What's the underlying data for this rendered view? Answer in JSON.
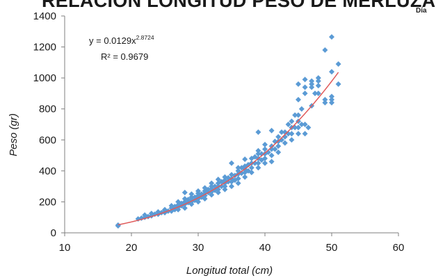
{
  "header": {
    "title": "RELACIÓN LONGITUD PESO DE MERLUZA",
    "side_fragment": "Día"
  },
  "colors": {
    "points": "#5b9bd5",
    "trendline": "#e05a5a",
    "axis": "#7f7f7f",
    "text": "#1a1a1a"
  },
  "chart_data": {
    "type": "scatter",
    "title": "RELACIÓN LONGITUD PESO DE MERLUZA",
    "xlabel": "Longitud total (cm)",
    "ylabel": "Peso (gr)",
    "xlim": [
      10,
      60
    ],
    "ylim": [
      0,
      1400
    ],
    "xticks": [
      10,
      20,
      30,
      40,
      50,
      60
    ],
    "yticks": [
      0,
      200,
      400,
      600,
      800,
      1000,
      1200,
      1400
    ],
    "grid": false,
    "legend": "none",
    "equation": "y = 0.0129x",
    "equation_exponent": "2.8724",
    "r_squared": "R² = 0.9679",
    "trendline": {
      "type": "power",
      "a": 0.0129,
      "b": 2.8724,
      "x_range": [
        18,
        51
      ]
    },
    "points": [
      [
        18,
        45
      ],
      [
        18,
        50
      ],
      [
        21,
        90
      ],
      [
        21.5,
        95
      ],
      [
        22,
        100
      ],
      [
        22,
        115
      ],
      [
        22.5,
        105
      ],
      [
        23,
        110
      ],
      [
        23,
        125
      ],
      [
        23.5,
        120
      ],
      [
        24,
        120
      ],
      [
        24,
        135
      ],
      [
        24.5,
        130
      ],
      [
        25,
        130
      ],
      [
        25,
        145
      ],
      [
        25,
        150
      ],
      [
        25.5,
        140
      ],
      [
        26,
        140
      ],
      [
        26,
        160
      ],
      [
        26,
        175
      ],
      [
        26.5,
        150
      ],
      [
        26.5,
        170
      ],
      [
        27,
        150
      ],
      [
        27,
        165
      ],
      [
        27,
        180
      ],
      [
        27,
        200
      ],
      [
        27.5,
        175
      ],
      [
        27.5,
        190
      ],
      [
        28,
        160
      ],
      [
        28,
        185
      ],
      [
        28,
        200
      ],
      [
        28,
        220
      ],
      [
        28,
        260
      ],
      [
        28.5,
        195
      ],
      [
        28.5,
        215
      ],
      [
        29,
        185
      ],
      [
        29,
        200
      ],
      [
        29,
        215
      ],
      [
        29,
        230
      ],
      [
        29,
        250
      ],
      [
        29.5,
        210
      ],
      [
        29.5,
        230
      ],
      [
        30,
        200
      ],
      [
        30,
        220
      ],
      [
        30,
        240
      ],
      [
        30,
        255
      ],
      [
        30,
        270
      ],
      [
        30.5,
        230
      ],
      [
        30.5,
        250
      ],
      [
        31,
        220
      ],
      [
        31,
        240
      ],
      [
        31,
        255
      ],
      [
        31,
        270
      ],
      [
        31,
        290
      ],
      [
        31.5,
        260
      ],
      [
        31.5,
        280
      ],
      [
        32,
        245
      ],
      [
        32,
        265
      ],
      [
        32,
        285
      ],
      [
        32,
        300
      ],
      [
        32,
        320
      ],
      [
        32.5,
        275
      ],
      [
        32.5,
        300
      ],
      [
        33,
        260
      ],
      [
        33,
        280
      ],
      [
        33,
        300
      ],
      [
        33,
        320
      ],
      [
        33,
        345
      ],
      [
        33.5,
        300
      ],
      [
        33.5,
        330
      ],
      [
        34,
        280
      ],
      [
        34,
        300
      ],
      [
        34,
        320
      ],
      [
        34,
        340
      ],
      [
        34,
        360
      ],
      [
        34.5,
        330
      ],
      [
        34.5,
        355
      ],
      [
        35,
        300
      ],
      [
        35,
        330
      ],
      [
        35,
        350
      ],
      [
        35,
        375
      ],
      [
        35,
        450
      ],
      [
        35.5,
        340
      ],
      [
        35.5,
        370
      ],
      [
        36,
        320
      ],
      [
        36,
        350
      ],
      [
        36,
        380
      ],
      [
        36,
        400
      ],
      [
        36,
        420
      ],
      [
        36.5,
        385
      ],
      [
        36.5,
        420
      ],
      [
        37,
        360
      ],
      [
        37,
        390
      ],
      [
        37,
        410
      ],
      [
        37,
        430
      ],
      [
        37,
        475
      ],
      [
        37.5,
        400
      ],
      [
        37.5,
        440
      ],
      [
        38,
        390
      ],
      [
        38,
        420
      ],
      [
        38,
        450
      ],
      [
        38,
        480
      ],
      [
        38.5,
        450
      ],
      [
        38.5,
        490
      ],
      [
        39,
        420
      ],
      [
        39,
        450
      ],
      [
        39,
        480
      ],
      [
        39,
        510
      ],
      [
        39,
        530
      ],
      [
        39,
        650
      ],
      [
        39.5,
        470
      ],
      [
        39.5,
        510
      ],
      [
        40,
        450
      ],
      [
        40,
        480
      ],
      [
        40,
        510
      ],
      [
        40,
        540
      ],
      [
        40,
        570
      ],
      [
        40.5,
        520
      ],
      [
        41,
        460
      ],
      [
        41,
        500
      ],
      [
        41,
        540
      ],
      [
        41,
        560
      ],
      [
        41,
        660
      ],
      [
        41.5,
        540
      ],
      [
        41.5,
        590
      ],
      [
        42,
        520
      ],
      [
        42,
        560
      ],
      [
        42,
        590
      ],
      [
        42,
        620
      ],
      [
        42.5,
        600
      ],
      [
        42.5,
        650
      ],
      [
        43,
        580
      ],
      [
        43,
        620
      ],
      [
        43,
        650
      ],
      [
        43.5,
        640
      ],
      [
        43.5,
        700
      ],
      [
        44,
        600
      ],
      [
        44,
        640
      ],
      [
        44,
        680
      ],
      [
        44,
        720
      ],
      [
        44.5,
        680
      ],
      [
        44.5,
        760
      ],
      [
        45,
        640
      ],
      [
        45,
        680
      ],
      [
        45,
        720
      ],
      [
        45,
        760
      ],
      [
        45,
        860
      ],
      [
        45,
        960
      ],
      [
        45.5,
        700
      ],
      [
        45.5,
        800
      ],
      [
        46,
        640
      ],
      [
        46,
        700
      ],
      [
        46,
        900
      ],
      [
        46,
        940
      ],
      [
        46,
        990
      ],
      [
        46.5,
        680
      ],
      [
        47,
        820
      ],
      [
        47,
        940
      ],
      [
        47,
        960
      ],
      [
        47,
        980
      ],
      [
        47.5,
        900
      ],
      [
        48,
        900
      ],
      [
        48,
        950
      ],
      [
        48,
        980
      ],
      [
        48,
        1000
      ],
      [
        49,
        840
      ],
      [
        49,
        860
      ],
      [
        49,
        1180
      ],
      [
        50,
        840
      ],
      [
        50,
        860
      ],
      [
        50,
        880
      ],
      [
        50,
        1040
      ],
      [
        50,
        1265
      ],
      [
        51,
        960
      ],
      [
        51,
        1090
      ]
    ]
  }
}
